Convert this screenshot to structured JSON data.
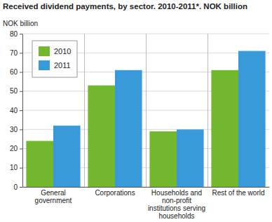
{
  "chart_data": {
    "type": "bar",
    "title": "Received dividend payments, by sector. 2010-2011*. NOK billion",
    "y_label": "NOK billion",
    "categories": [
      "General government",
      "Corporations",
      "Households and non-profit institutions serving households",
      "Rest of the world"
    ],
    "series": [
      {
        "name": "2010",
        "color": "#73b72f",
        "values": [
          24,
          53,
          29,
          61
        ]
      },
      {
        "name": "2011",
        "color": "#3a9ad9",
        "values": [
          32,
          61,
          30,
          71
        ]
      }
    ],
    "ylim": [
      0,
      80
    ],
    "yticks": [
      0,
      10,
      20,
      30,
      40,
      50,
      60,
      70,
      80
    ],
    "grid": true,
    "legend": "top-left"
  }
}
